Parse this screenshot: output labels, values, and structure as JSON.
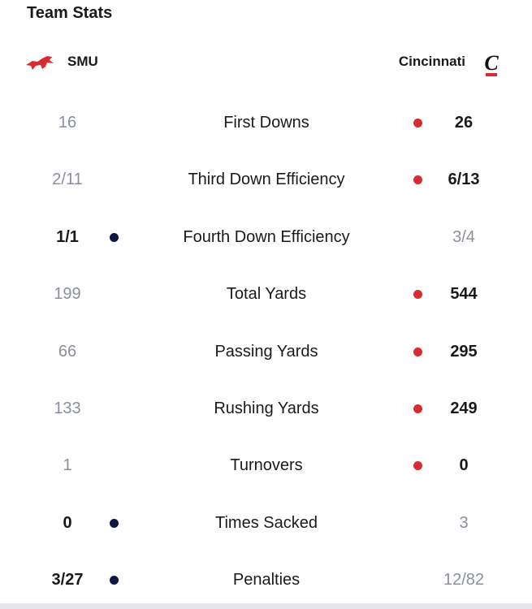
{
  "header": {
    "title": "Team Stats"
  },
  "teams": [
    {
      "name": "SMU",
      "color": "#0b1846"
    },
    {
      "name": "Cincinnati",
      "color": "#d82a2f"
    }
  ],
  "rows": [
    {
      "label": "First Downs",
      "values": [
        "16",
        "26"
      ],
      "leader": 1
    },
    {
      "label": "Third Down Efficiency",
      "values": [
        "2/11",
        "6/13"
      ],
      "leader": 1
    },
    {
      "label": "Fourth Down Efficiency",
      "values": [
        "1/1",
        "3/4"
      ],
      "leader": 0
    },
    {
      "label": "Total Yards",
      "values": [
        "199",
        "544"
      ],
      "leader": 1
    },
    {
      "label": "Passing Yards",
      "values": [
        "66",
        "295"
      ],
      "leader": 1
    },
    {
      "label": "Rushing Yards",
      "values": [
        "133",
        "249"
      ],
      "leader": 1
    },
    {
      "label": "Turnovers",
      "values": [
        "1",
        "0"
      ],
      "leader": 1
    },
    {
      "label": "Times Sacked",
      "values": [
        "0",
        "3"
      ],
      "leader": 0
    },
    {
      "label": "Penalties",
      "values": [
        "3/27",
        "12/82"
      ],
      "leader": 0
    }
  ]
}
